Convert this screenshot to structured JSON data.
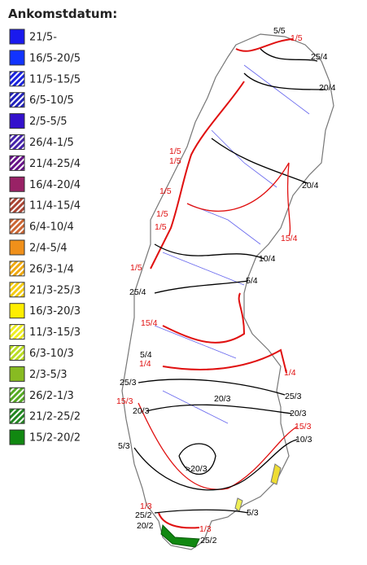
{
  "legend": {
    "title": "Ankomstdatum:",
    "items": [
      {
        "label": "21/5-",
        "color": "#1a1aee",
        "hatched": false
      },
      {
        "label": "16/5-20/5",
        "color": "#1133ff",
        "hatched": false
      },
      {
        "label": "11/5-15/5",
        "color": "#1a22dd",
        "hatched": true
      },
      {
        "label": "6/5-10/5",
        "color": "#2222bb",
        "hatched": true
      },
      {
        "label": "2/5-5/5",
        "color": "#3311cc",
        "hatched": false
      },
      {
        "label": "26/4-1/5",
        "color": "#4422aa",
        "hatched": true
      },
      {
        "label": "21/4-25/4",
        "color": "#661188",
        "hatched": true
      },
      {
        "label": "16/4-20/4",
        "color": "#992266",
        "hatched": false
      },
      {
        "label": "11/4-15/4",
        "color": "#aa4433",
        "hatched": true
      },
      {
        "label": "6/4-10/4",
        "color": "#cc6633",
        "hatched": true
      },
      {
        "label": "2/4-5/4",
        "color": "#f0901a",
        "hatched": false
      },
      {
        "label": "26/3-1/4",
        "color": "#f0aa11",
        "hatched": true
      },
      {
        "label": "21/3-25/3",
        "color": "#f5cc11",
        "hatched": true
      },
      {
        "label": "16/3-20/3",
        "color": "#ffee00",
        "hatched": false
      },
      {
        "label": "11/3-15/3",
        "color": "#eeee22",
        "hatched": true
      },
      {
        "label": "6/3-10/3",
        "color": "#bbdd22",
        "hatched": true
      },
      {
        "label": "2/3-5/3",
        "color": "#88bb22",
        "hatched": false
      },
      {
        "label": "26/2-1/3",
        "color": "#55aa22",
        "hatched": true
      },
      {
        "label": "21/2-25/2",
        "color": "#228822",
        "hatched": true
      },
      {
        "label": "15/2-20/2",
        "color": "#118811",
        "hatched": false
      }
    ]
  },
  "map_labels": [
    {
      "text": "5/5",
      "color": "#000000"
    },
    {
      "text": "1/5",
      "color": "#e01010"
    },
    {
      "text": "25/4",
      "color": "#000000"
    },
    {
      "text": "20/4",
      "color": "#000000"
    },
    {
      "text": "1/5",
      "color": "#e01010"
    },
    {
      "text": "1/5",
      "color": "#e01010"
    },
    {
      "text": "20/4",
      "color": "#000000"
    },
    {
      "text": "1/5",
      "color": "#e01010"
    },
    {
      "text": "1/5",
      "color": "#e01010"
    },
    {
      "text": "1/5",
      "color": "#e01010"
    },
    {
      "text": "15/4",
      "color": "#e01010"
    },
    {
      "text": "10/4",
      "color": "#000000"
    },
    {
      "text": "1/5",
      "color": "#e01010"
    },
    {
      "text": "5/4",
      "color": "#000000"
    },
    {
      "text": "25/4",
      "color": "#000000"
    },
    {
      "text": "15/4",
      "color": "#e01010"
    },
    {
      "text": "5/4",
      "color": "#000000"
    },
    {
      "text": "1/4",
      "color": "#e01010"
    },
    {
      "text": "1/4",
      "color": "#e01010"
    },
    {
      "text": "25/3",
      "color": "#000000"
    },
    {
      "text": "25/3",
      "color": "#000000"
    },
    {
      "text": "15/3",
      "color": "#e01010"
    },
    {
      "text": "20/3",
      "color": "#000000"
    },
    {
      "text": "20/3",
      "color": "#000000"
    },
    {
      "text": "20/3",
      "color": "#000000"
    },
    {
      "text": "15/3",
      "color": "#e01010"
    },
    {
      "text": "10/3",
      "color": "#000000"
    },
    {
      "text": "5/3",
      "color": "#000000"
    },
    {
      "text": ">20/3",
      "color": "#000000"
    },
    {
      "text": "5/3",
      "color": "#000000"
    },
    {
      "text": "1/3",
      "color": "#e01010"
    },
    {
      "text": "25/2",
      "color": "#000000"
    },
    {
      "text": "20/2",
      "color": "#000000"
    },
    {
      "text": "1/3",
      "color": "#e01010"
    },
    {
      "text": "25/2",
      "color": "#000000"
    }
  ]
}
